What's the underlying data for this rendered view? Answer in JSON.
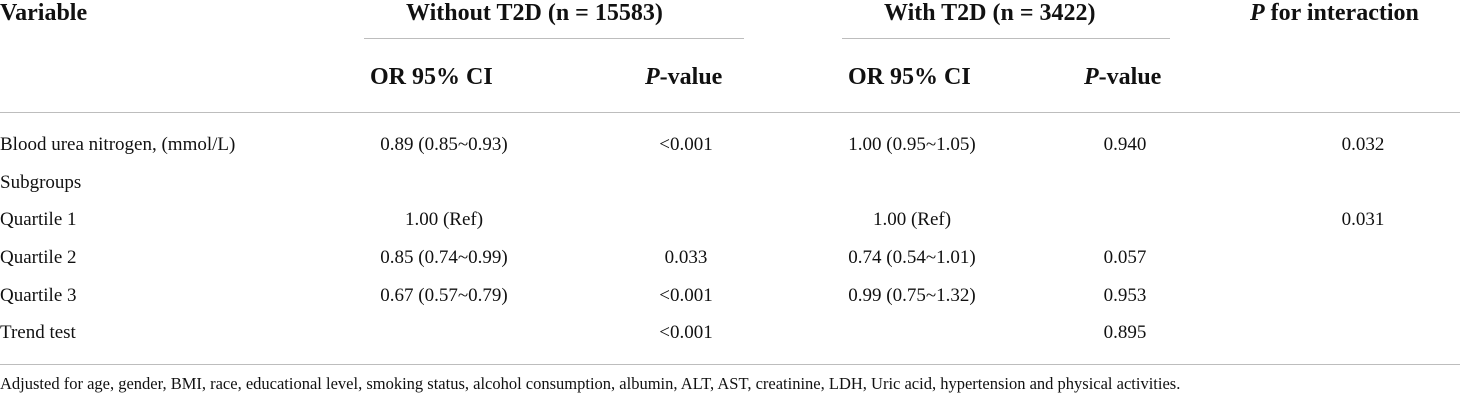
{
  "table": {
    "header": {
      "variable": "Variable",
      "group1": "Without T2D (n = 15583)",
      "group2": "With T2D (n = 3422)",
      "interaction_p": "P",
      "interaction_rest": " for interaction",
      "or_ci": "OR 95% CI",
      "pvalue_p": "P",
      "pvalue_rest": "-value"
    },
    "rows": [
      {
        "label": "Blood urea nitrogen, (mmol/L)",
        "or1": "0.89 (0.85~0.93)",
        "p1": "<0.001",
        "or2": "1.00 (0.95~1.05)",
        "p2": "0.940",
        "pint": "0.032"
      },
      {
        "label": "Subgroups",
        "or1": "",
        "p1": "",
        "or2": "",
        "p2": "",
        "pint": ""
      },
      {
        "label": "Quartile 1",
        "or1": "1.00 (Ref)",
        "p1": "",
        "or2": "1.00 (Ref)",
        "p2": "",
        "pint": "0.031"
      },
      {
        "label": "Quartile 2",
        "or1": "0.85 (0.74~0.99)",
        "p1": "0.033",
        "or2": "0.74 (0.54~1.01)",
        "p2": "0.057",
        "pint": ""
      },
      {
        "label": "Quartile 3",
        "or1": "0.67 (0.57~0.79)",
        "p1": "<0.001",
        "or2": "0.99 (0.75~1.32)",
        "p2": "0.953",
        "pint": ""
      },
      {
        "label": "Trend test",
        "or1": "",
        "p1": "<0.001",
        "or2": "",
        "p2": "0.895",
        "pint": ""
      }
    ],
    "footnote": "Adjusted for age, gender, BMI, race, educational level, smoking status, alcohol consumption, albumin, ALT, AST, creatinine, LDH, Uric acid, hypertension and physical activities."
  }
}
